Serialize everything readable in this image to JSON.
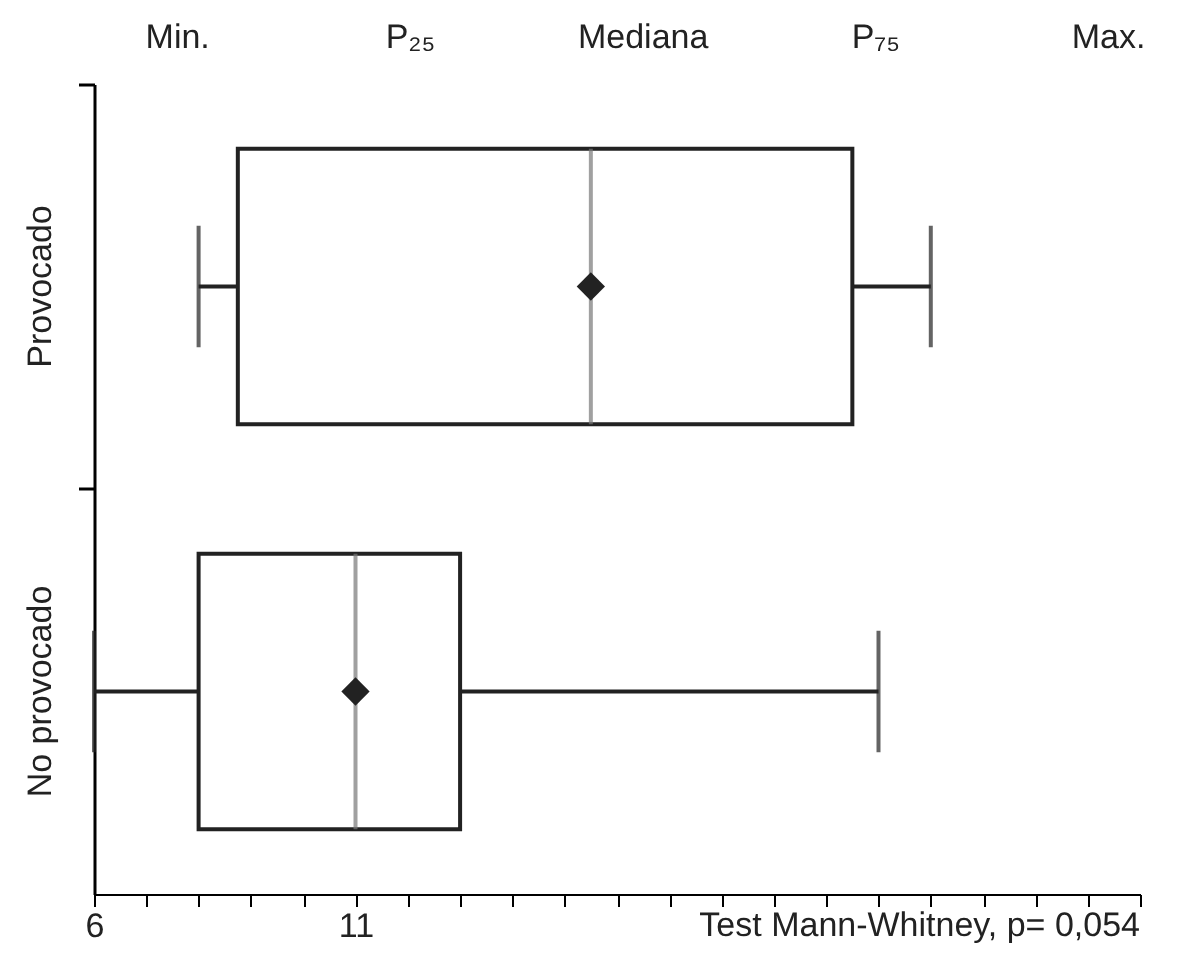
{
  "chart_data": {
    "type": "box",
    "orientation": "horizontal",
    "categories": [
      "Provocado",
      "No provocado"
    ],
    "boxes": [
      {
        "low": 8.0,
        "q1": 8.75,
        "median": 15.5,
        "q3": 20.5,
        "high": 22.0,
        "mean": 15.5
      },
      {
        "low": 6,
        "q1": 8.0,
        "median": 11,
        "q3": 13.0,
        "high": 21.0,
        "mean": 11
      }
    ],
    "xlim": [
      6,
      26
    ],
    "xticks": [
      6,
      {
        "value": 7,
        "label": null
      },
      {
        "value": 8,
        "label": null
      },
      {
        "value": 9,
        "label": null
      },
      {
        "value": 10,
        "label": null
      },
      11,
      {
        "value": 12,
        "label": null
      },
      {
        "value": 13,
        "label": null
      },
      {
        "value": 14,
        "label": null
      },
      {
        "value": 15,
        "label": null
      },
      {
        "value": 16,
        "label": null
      },
      {
        "value": 17,
        "label": null
      },
      {
        "value": 18,
        "label": null
      },
      {
        "value": 19,
        "label": null
      },
      {
        "value": 20,
        "label": null
      },
      {
        "value": 21,
        "label": null
      },
      {
        "value": 22,
        "label": null
      },
      {
        "value": 23,
        "label": null
      },
      {
        "value": 24,
        "label": null
      },
      {
        "value": 25,
        "label": null
      },
      {
        "value": 26,
        "label": null
      }
    ],
    "xlabel": "Test Mann-Whitney, p= 0,054",
    "annotations": [
      "Min.",
      "P₂₅",
      "Mediana",
      "P₇₅",
      "Max."
    ],
    "grid": false,
    "marker": "diamond"
  }
}
